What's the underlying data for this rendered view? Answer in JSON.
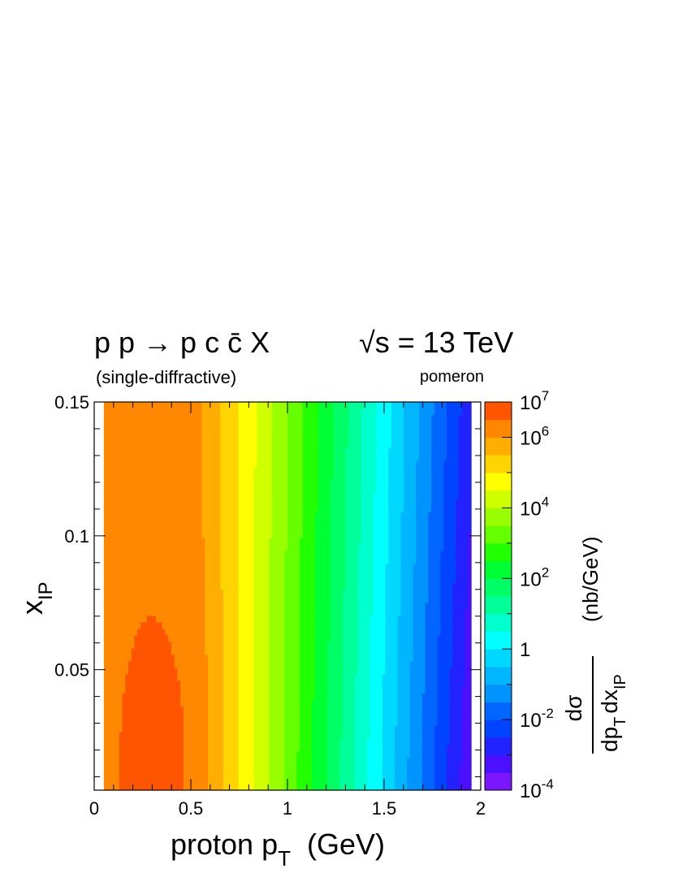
{
  "header": {
    "process": "p p → p c c̄ X",
    "process_note": "(single-diffractive)",
    "energy": "√s = 13 TeV",
    "exchange": "pomeron"
  },
  "chart_data": {
    "type": "heatmap",
    "style": "filled contour, log-scaled color",
    "title": "p p → p c c̄ X",
    "subtitle": "(single-diffractive)",
    "annotations": [
      "√s = 13 TeV",
      "pomeron"
    ],
    "xlabel": "proton p_T   (GeV)",
    "ylabel": "x_IP",
    "zlabel": "dσ / (dp_T dx_IP)   (nb/GeV)",
    "xlim": [
      0,
      2
    ],
    "ylim": [
      0.005,
      0.15
    ],
    "xticks": [
      0,
      0.5,
      1,
      1.5,
      2
    ],
    "xtick_labels": [
      "0",
      "0.5",
      "1",
      "1.5",
      "2"
    ],
    "yticks": [
      0.05,
      0.1,
      0.15
    ],
    "ytick_labels": [
      "0.05",
      "0.1",
      "0.15"
    ],
    "z_scale": "log",
    "zlim": [
      0.0001,
      10000000
    ],
    "z_ticks": [
      {
        "exp": -4,
        "base": "10",
        "sup": "-4"
      },
      {
        "exp": -2,
        "base": "10",
        "sup": "-2"
      },
      {
        "exp": 0,
        "base": "1",
        "sup": ""
      },
      {
        "exp": 2,
        "base": "10",
        "sup": "2"
      },
      {
        "exp": 4,
        "base": "10",
        "sup": "4"
      },
      {
        "exp": 6,
        "base": "10",
        "sup": "6"
      },
      {
        "exp": 7,
        "base": "10",
        "sup": "7"
      }
    ],
    "data_x_range": [
      0.05,
      1.95
    ],
    "peak_region": {
      "x": [
        0.15,
        0.45
      ],
      "y": [
        0.01,
        0.09
      ],
      "log10_value": 6.5
    },
    "contour_levels_log10": [
      -4,
      -3.5,
      -3,
      -2.5,
      -2,
      -1.5,
      -1,
      -0.5,
      0,
      0.5,
      1,
      1.5,
      2,
      2.5,
      3,
      3.5,
      4,
      4.5,
      5,
      5.5,
      6,
      6.5,
      7
    ],
    "contour_colors": [
      "#7a17ff",
      "#4a10ff",
      "#2222ff",
      "#0044ff",
      "#0066ff",
      "#0094ff",
      "#00b6ff",
      "#00d8ff",
      "#00ffff",
      "#00ffcc",
      "#00ff99",
      "#00ff66",
      "#00ff33",
      "#22ff00",
      "#66ff00",
      "#99ff00",
      "#d0ff00",
      "#ffff00",
      "#ffd400",
      "#ffae00",
      "#ff8800",
      "#ff5500",
      "#ff2200"
    ]
  }
}
